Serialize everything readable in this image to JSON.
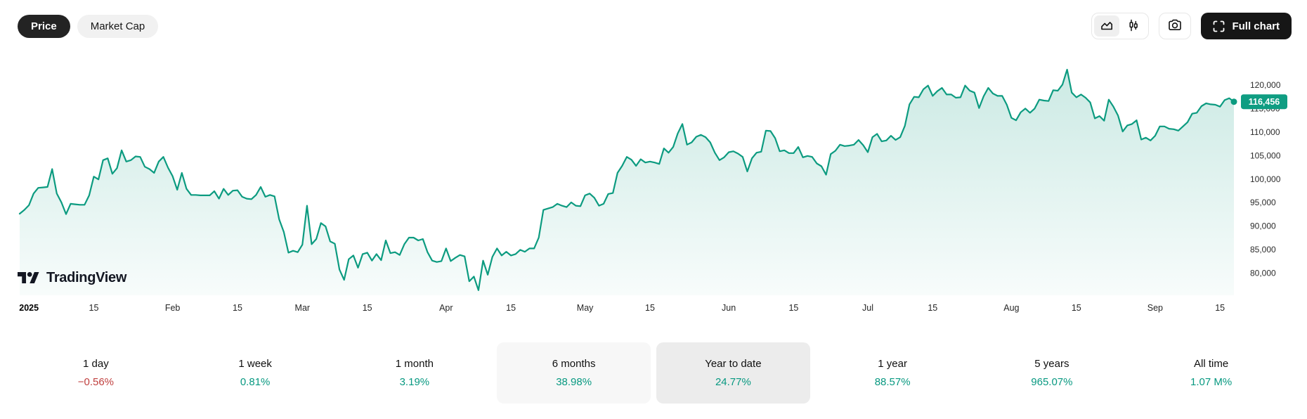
{
  "header": {
    "view_toggle": {
      "options": [
        {
          "label": "Price",
          "selected": true
        },
        {
          "label": "Market Cap",
          "selected": false
        }
      ]
    },
    "chart_style_toggle": {
      "options": [
        {
          "name": "area-chart-icon",
          "selected": true
        },
        {
          "name": "candlestick-icon",
          "selected": false
        }
      ]
    },
    "snapshot_button": {
      "icon": "camera-icon"
    },
    "full_chart_button": {
      "label": "Full chart",
      "icon": "fullscreen-icon"
    }
  },
  "watermark": {
    "brand": "TradingView"
  },
  "colors": {
    "accent_teal": "#0c9b80",
    "positive": "#089981",
    "negative": "#c0403f",
    "badge_bg": "#0f9d82",
    "dark_button": "#161616",
    "axis_text": "#2c2c2c"
  },
  "chart_data": {
    "type": "area",
    "series_name": "Price",
    "interval": "1 day",
    "start_date": "2024-12-30",
    "grid": false,
    "ylim": [
      80000,
      120000
    ],
    "current_price": 116456,
    "current_price_label": "116,456",
    "y_ticks": [
      {
        "value": 120000,
        "label": "120,000"
      },
      {
        "value": 115000,
        "label": "115,000"
      },
      {
        "value": 110000,
        "label": "110,000"
      },
      {
        "value": 105000,
        "label": "105,000"
      },
      {
        "value": 100000,
        "label": "100,000"
      },
      {
        "value": 95000,
        "label": "95,000"
      },
      {
        "value": 90000,
        "label": "90,000"
      },
      {
        "value": 85000,
        "label": "85,000"
      },
      {
        "value": 80000,
        "label": "80,000"
      }
    ],
    "x_ticks": [
      {
        "label": "2025",
        "day_index": 2,
        "bold": true
      },
      {
        "label": "15",
        "day_index": 16,
        "bold": false
      },
      {
        "label": "Feb",
        "day_index": 33,
        "bold": false
      },
      {
        "label": "15",
        "day_index": 47,
        "bold": false
      },
      {
        "label": "Mar",
        "day_index": 61,
        "bold": false
      },
      {
        "label": "15",
        "day_index": 75,
        "bold": false
      },
      {
        "label": "Apr",
        "day_index": 92,
        "bold": false
      },
      {
        "label": "15",
        "day_index": 106,
        "bold": false
      },
      {
        "label": "May",
        "day_index": 122,
        "bold": false
      },
      {
        "label": "15",
        "day_index": 136,
        "bold": false
      },
      {
        "label": "Jun",
        "day_index": 153,
        "bold": false
      },
      {
        "label": "15",
        "day_index": 167,
        "bold": false
      },
      {
        "label": "Jul",
        "day_index": 183,
        "bold": false
      },
      {
        "label": "15",
        "day_index": 197,
        "bold": false
      },
      {
        "label": "Aug",
        "day_index": 214,
        "bold": false
      },
      {
        "label": "15",
        "day_index": 228,
        "bold": false
      },
      {
        "label": "Sep",
        "day_index": 245,
        "bold": false
      },
      {
        "label": "15",
        "day_index": 259,
        "bold": false
      }
    ],
    "prices": [
      92600,
      93400,
      94400,
      96900,
      98100,
      98200,
      98300,
      102100,
      96900,
      95000,
      92500,
      94700,
      94600,
      94500,
      94500,
      96500,
      100500,
      99900,
      104000,
      104400,
      101100,
      102300,
      106100,
      103700,
      104000,
      104800,
      104700,
      102600,
      102100,
      101300,
      103700,
      104700,
      102400,
      100600,
      97700,
      101300,
      97900,
      96600,
      96600,
      96500,
      96500,
      96500,
      97400,
      95800,
      97900,
      96600,
      97500,
      97600,
      96200,
      95800,
      95700,
      96600,
      98300,
      96200,
      96600,
      96300,
      91400,
      88700,
      84300,
      84700,
      84400,
      86000,
      94300,
      86100,
      87200,
      90600,
      89900,
      86700,
      86200,
      80700,
      78500,
      82900,
      83700,
      81100,
      84000,
      84300,
      82600,
      84000,
      82700,
      86900,
      84200,
      84400,
      83800,
      86100,
      87500,
      87500,
      86900,
      87200,
      84400,
      82600,
      82300,
      82500,
      85200,
      82500,
      83200,
      83800,
      83500,
      78200,
      79200,
      76300,
      82600,
      79600,
      83400,
      85200,
      83700,
      84500,
      83700,
      84000,
      84900,
      84500,
      85200,
      85200,
      87500,
      93400,
      93700,
      94000,
      94700,
      94300,
      94000,
      95000,
      94300,
      94200,
      96500,
      96900,
      96000,
      94300,
      94700,
      96800,
      97000,
      101300,
      102800,
      104700,
      104100,
      102800,
      104200,
      103500,
      103700,
      103500,
      103200,
      106500,
      105600,
      106800,
      109700,
      111700,
      107300,
      107800,
      109000,
      109400,
      108900,
      107800,
      105600,
      104000,
      104600,
      105700,
      105900,
      105400,
      104700,
      101600,
      104400,
      105600,
      105800,
      110300,
      110200,
      108700,
      105900,
      106100,
      105500,
      105500,
      106800,
      104600,
      104900,
      104700,
      103300,
      102700,
      100900,
      105300,
      106000,
      107300,
      107000,
      107100,
      107300,
      108300,
      107200,
      105700,
      108900,
      109600,
      108000,
      108200,
      109200,
      108300,
      108900,
      111300,
      115900,
      117500,
      117400,
      119100,
      119900,
      117700,
      118700,
      119400,
      118000,
      118000,
      117300,
      117400,
      119900,
      118800,
      118400,
      115100,
      117600,
      119400,
      118200,
      117700,
      117700,
      115800,
      113000,
      112500,
      114200,
      115000,
      114100,
      115000,
      116900,
      116700,
      116600,
      118900,
      118800,
      120100,
      123300,
      118400,
      117400,
      118000,
      117300,
      116300,
      112900,
      113400,
      112400,
      116900,
      115400,
      113500,
      110100,
      111400,
      111700,
      112500,
      108400,
      108800,
      108200,
      109200,
      111200,
      111200,
      110700,
      110600,
      110300,
      111200,
      112100,
      113900,
      114100,
      115500,
      116100,
      115900,
      115800,
      115400,
      116800,
      117200,
      116456
    ]
  },
  "stats": [
    {
      "label": "1 day",
      "value": "−0.56%",
      "direction": "down",
      "highlight": "none"
    },
    {
      "label": "1 week",
      "value": "0.81%",
      "direction": "up",
      "highlight": "none"
    },
    {
      "label": "1 month",
      "value": "3.19%",
      "direction": "up",
      "highlight": "none"
    },
    {
      "label": "6 months",
      "value": "38.98%",
      "direction": "up",
      "highlight": "light"
    },
    {
      "label": "Year to date",
      "value": "24.77%",
      "direction": "up",
      "highlight": "dark"
    },
    {
      "label": "1 year",
      "value": "88.57%",
      "direction": "up",
      "highlight": "none"
    },
    {
      "label": "5 years",
      "value": "965.07%",
      "direction": "up",
      "highlight": "none"
    },
    {
      "label": "All time",
      "value": "1.07 M%",
      "direction": "up",
      "highlight": "none"
    }
  ]
}
